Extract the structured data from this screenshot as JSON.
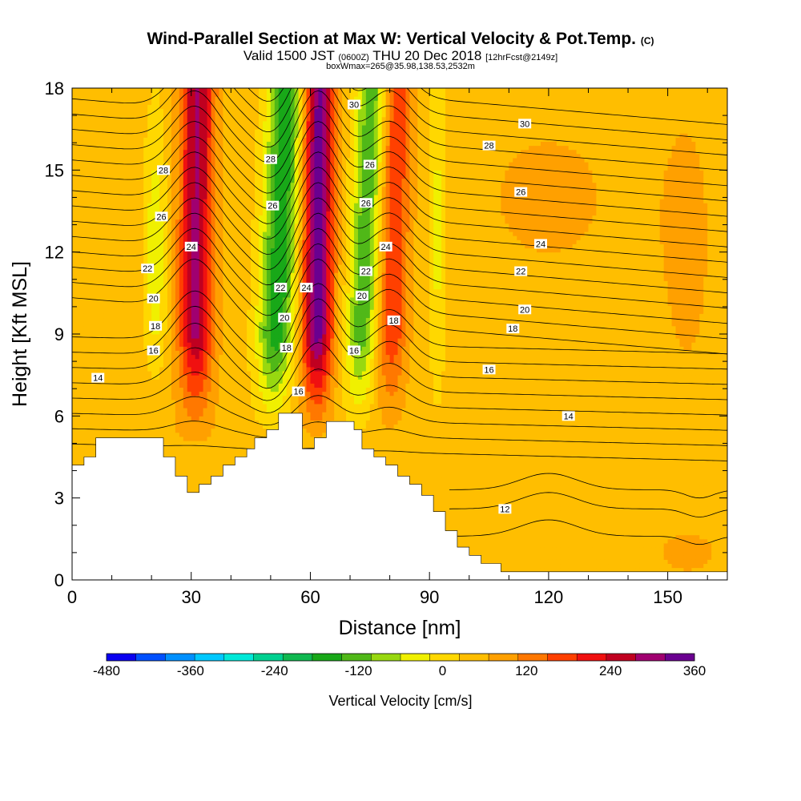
{
  "header": {
    "title_main": "Wind-Parallel Section at Max W: Vertical Velocity & Pot.Temp.",
    "title_tag": "(C)",
    "valid_prefix": "Valid 1500 JST",
    "valid_utc": "(0600Z)",
    "valid_date": "THU 20 Dec 2018",
    "forecast_tag": "[12hrFcst@2149z]",
    "box_info": "boxWmax=265@35.98,138.53,2532m"
  },
  "colors": {
    "scale": [
      "#0a00f0",
      "#0050ff",
      "#0090ff",
      "#00c8ff",
      "#00e8d8",
      "#00d090",
      "#10b850",
      "#18a818",
      "#50b818",
      "#98d810",
      "#f0f000",
      "#ffd800",
      "#ffbe00",
      "#ffa000",
      "#ff7800",
      "#ff4000",
      "#f01010",
      "#c00020",
      "#a00070",
      "#6a0090"
    ],
    "terrain": "#ffffff",
    "contour": "#000000"
  },
  "chart_data": {
    "type": "heatmap",
    "xlabel": "Distance [nm]",
    "ylabel": "Height [Kft MSL]",
    "xlim": [
      0,
      165
    ],
    "ylim": [
      0,
      18
    ],
    "x_ticks": [
      0,
      30,
      60,
      90,
      120,
      150
    ],
    "y_ticks": [
      0,
      3,
      6,
      9,
      12,
      15,
      18
    ],
    "colorbar": {
      "label": "Vertical Velocity [cm/s]",
      "min": -480,
      "max": 360,
      "step": 40,
      "tick_values": [
        -480,
        -360,
        -240,
        -120,
        0,
        120,
        240,
        360
      ]
    },
    "terrain_kft": [
      [
        0,
        4.2
      ],
      [
        3,
        4.2
      ],
      [
        3,
        4.5
      ],
      [
        6,
        4.5
      ],
      [
        6,
        5.2
      ],
      [
        23,
        5.2
      ],
      [
        23,
        4.5
      ],
      [
        26,
        4.5
      ],
      [
        26,
        3.8
      ],
      [
        29,
        3.8
      ],
      [
        29,
        3.2
      ],
      [
        32,
        3.2
      ],
      [
        32,
        3.5
      ],
      [
        35,
        3.5
      ],
      [
        35,
        3.8
      ],
      [
        38,
        3.8
      ],
      [
        38,
        4.2
      ],
      [
        41,
        4.2
      ],
      [
        41,
        4.5
      ],
      [
        44,
        4.5
      ],
      [
        44,
        4.8
      ],
      [
        46,
        4.8
      ],
      [
        46,
        5.2
      ],
      [
        49,
        5.2
      ],
      [
        49,
        5.5
      ],
      [
        52,
        5.5
      ],
      [
        52,
        6.1
      ],
      [
        55,
        6.1
      ],
      [
        58,
        6.1
      ],
      [
        58,
        5.5
      ],
      [
        58,
        5.5
      ],
      [
        58,
        4.8
      ],
      [
        61,
        4.8
      ],
      [
        61,
        5.2
      ],
      [
        64,
        5.2
      ],
      [
        64,
        5.8
      ],
      [
        71,
        5.8
      ],
      [
        71,
        5.5
      ],
      [
        73,
        5.5
      ],
      [
        73,
        4.8
      ],
      [
        76,
        4.8
      ],
      [
        76,
        4.5
      ],
      [
        79,
        4.5
      ],
      [
        79,
        4.2
      ],
      [
        82,
        4.2
      ],
      [
        82,
        3.8
      ],
      [
        85,
        3.8
      ],
      [
        85,
        3.5
      ],
      [
        88,
        3.5
      ],
      [
        88,
        3.1
      ],
      [
        91,
        3.1
      ],
      [
        91,
        2.5
      ],
      [
        94,
        2.5
      ],
      [
        94,
        1.8
      ],
      [
        97,
        1.8
      ],
      [
        97,
        1.2
      ],
      [
        100,
        1.2
      ],
      [
        100,
        0.9
      ],
      [
        103,
        0.9
      ],
      [
        103,
        0.6
      ],
      [
        108,
        0.6
      ],
      [
        108,
        0.3
      ],
      [
        165,
        0.3
      ],
      [
        165,
        0
      ]
    ],
    "theta_contours_c": [
      12,
      14,
      16,
      18,
      20,
      22,
      24,
      26,
      28,
      30
    ],
    "theta_base_kft": [
      1.5,
      7.3,
      8.1,
      8.6,
      9.2,
      9.9,
      10.5,
      11.4,
      12.5,
      14
    ],
    "updraft_max_cm_s": 265,
    "updraft_x_nm": 62,
    "contour_labels": [
      {
        "text": "14",
        "x": 6.5,
        "y": 7.4
      },
      {
        "text": "16",
        "x": 20.5,
        "y": 8.4
      },
      {
        "text": "18",
        "x": 21,
        "y": 9.3
      },
      {
        "text": "20",
        "x": 20.5,
        "y": 10.3
      },
      {
        "text": "22",
        "x": 19,
        "y": 11.4
      },
      {
        "text": "26",
        "x": 22.5,
        "y": 13.3
      },
      {
        "text": "28",
        "x": 23,
        "y": 15.0
      },
      {
        "text": "24",
        "x": 30,
        "y": 12.2
      },
      {
        "text": "28",
        "x": 50,
        "y": 15.4
      },
      {
        "text": "26",
        "x": 50.5,
        "y": 13.7
      },
      {
        "text": "22",
        "x": 52.5,
        "y": 10.7
      },
      {
        "text": "20",
        "x": 53.5,
        "y": 9.6
      },
      {
        "text": "18",
        "x": 54,
        "y": 8.5
      },
      {
        "text": "16",
        "x": 57,
        "y": 6.9
      },
      {
        "text": "24",
        "x": 59,
        "y": 10.7
      },
      {
        "text": "30",
        "x": 71,
        "y": 17.4
      },
      {
        "text": "26",
        "x": 75,
        "y": 15.2
      },
      {
        "text": "26",
        "x": 74,
        "y": 13.8
      },
      {
        "text": "24",
        "x": 79,
        "y": 12.2
      },
      {
        "text": "22",
        "x": 74,
        "y": 11.3
      },
      {
        "text": "20",
        "x": 73,
        "y": 10.4
      },
      {
        "text": "18",
        "x": 81,
        "y": 9.5
      },
      {
        "text": "16",
        "x": 71,
        "y": 8.4
      },
      {
        "text": "30",
        "x": 114,
        "y": 16.7
      },
      {
        "text": "28",
        "x": 105,
        "y": 15.9
      },
      {
        "text": "26",
        "x": 113,
        "y": 14.2
      },
      {
        "text": "24",
        "x": 118,
        "y": 12.3
      },
      {
        "text": "22",
        "x": 113,
        "y": 11.3
      },
      {
        "text": "20",
        "x": 114,
        "y": 9.9
      },
      {
        "text": "18",
        "x": 111,
        "y": 9.2
      },
      {
        "text": "16",
        "x": 105,
        "y": 7.7
      },
      {
        "text": "14",
        "x": 125,
        "y": 6.0
      },
      {
        "text": "12",
        "x": 109,
        "y": 2.6
      }
    ]
  }
}
